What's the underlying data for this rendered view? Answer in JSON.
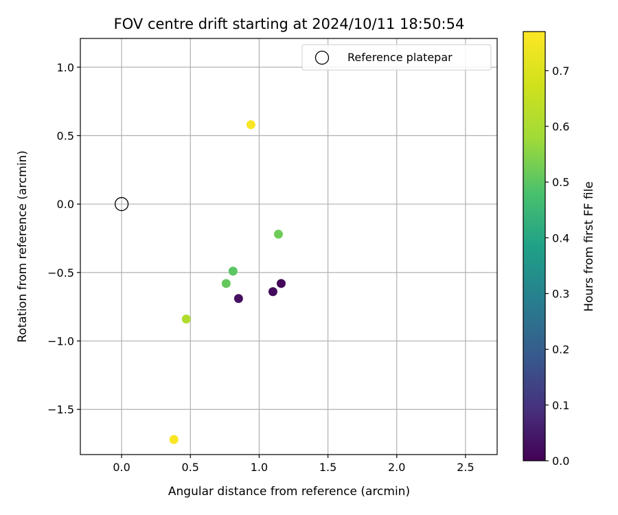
{
  "chart_data": {
    "type": "scatter",
    "title": "FOV centre drift starting at 2024/10/11 18:50:54",
    "xlabel": "Angular distance from reference (arcmin)",
    "ylabel": "Rotation from reference (arcmin)",
    "xlim": [
      -0.3,
      2.73
    ],
    "ylim": [
      -1.83,
      1.21
    ],
    "xticks": [
      0.0,
      0.5,
      1.0,
      1.5,
      2.0,
      2.5
    ],
    "xtick_labels": [
      "0.0",
      "0.5",
      "1.0",
      "1.5",
      "2.0",
      "2.5"
    ],
    "yticks": [
      1.0,
      0.5,
      0.0,
      -0.5,
      -1.0,
      -1.5
    ],
    "ytick_labels": [
      "1.0",
      "0.5",
      "0.0",
      "−0.5",
      "−1.0",
      "−1.5"
    ],
    "grid": true,
    "legend": {
      "position": "top-right",
      "entries": [
        {
          "label": "Reference platepar",
          "marker": "open-circle"
        }
      ]
    },
    "reference_point": {
      "x": 0.0,
      "y": 0.0
    },
    "points": [
      {
        "x": 1.16,
        "y": -0.58,
        "hours": 0.01
      },
      {
        "x": 1.1,
        "y": -0.64,
        "hours": 0.02
      },
      {
        "x": 0.85,
        "y": -0.69,
        "hours": 0.03
      },
      {
        "x": 0.81,
        "y": -0.49,
        "hours": 0.5
      },
      {
        "x": 0.76,
        "y": -0.58,
        "hours": 0.51
      },
      {
        "x": 1.14,
        "y": -0.22,
        "hours": 0.52
      },
      {
        "x": 0.47,
        "y": -0.84,
        "hours": 0.61
      },
      {
        "x": 0.94,
        "y": 0.58,
        "hours": 0.76
      },
      {
        "x": 0.38,
        "y": -1.72,
        "hours": 0.75
      },
      {
        "x": 0.38,
        "y": -1.72,
        "hours": 0.76
      }
    ],
    "colorbar": {
      "label": "Hours from first FF file",
      "colormap": "viridis",
      "range": [
        0.0,
        0.77
      ],
      "ticks": [
        0.0,
        0.1,
        0.2,
        0.3,
        0.4,
        0.5,
        0.6,
        0.7
      ],
      "tick_labels": [
        "0.0",
        "0.1",
        "0.2",
        "0.3",
        "0.4",
        "0.5",
        "0.6",
        "0.7"
      ]
    }
  }
}
